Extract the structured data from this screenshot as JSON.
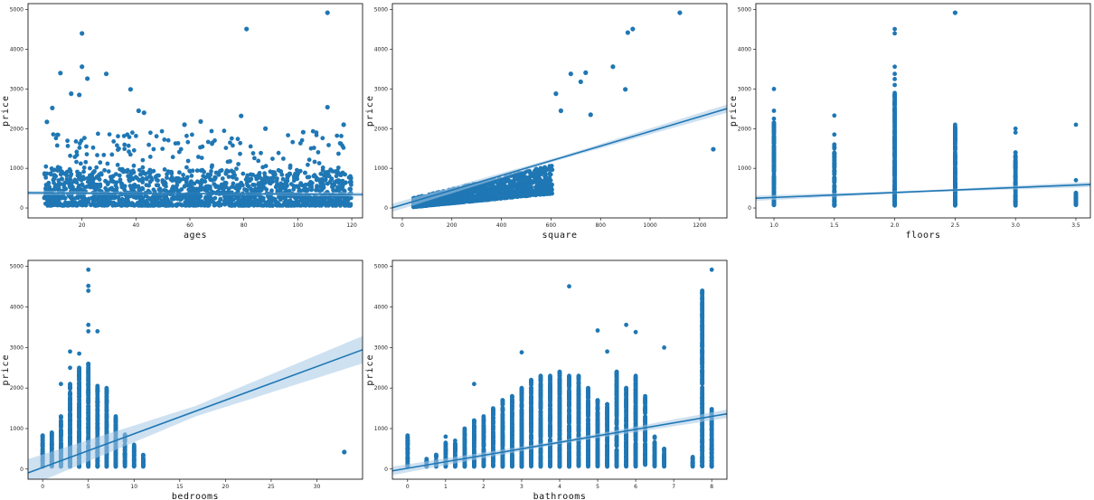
{
  "colors": {
    "points": "#1f77b4",
    "line": "#1f77b4",
    "band": "#a6c8e6",
    "frame": "#000000"
  },
  "chart_data": [
    {
      "type": "scatter",
      "xlabel": "ages",
      "ylabel": "price",
      "xticks": [
        20,
        40,
        60,
        80,
        100,
        120
      ],
      "yticks": [
        0,
        1000,
        2000,
        3000,
        4000,
        5000
      ],
      "xlim": [
        0,
        124
      ],
      "ylim": [
        -250,
        5150
      ],
      "regression": {
        "intercept": 380,
        "slope": -0.3,
        "band": 20
      },
      "outliers": [
        {
          "x": 111,
          "y": 4920
        },
        {
          "x": 81,
          "y": 4510
        },
        {
          "x": 20,
          "y": 4400
        },
        {
          "x": 20,
          "y": 3560
        },
        {
          "x": 12,
          "y": 3400
        },
        {
          "x": 29,
          "y": 3380
        },
        {
          "x": 22,
          "y": 3260
        },
        {
          "x": 38,
          "y": 2990
        },
        {
          "x": 41,
          "y": 2450
        },
        {
          "x": 43,
          "y": 2400
        },
        {
          "x": 16,
          "y": 2880
        },
        {
          "x": 19,
          "y": 2850
        },
        {
          "x": 111,
          "y": 2540
        },
        {
          "x": 9,
          "y": 2520
        },
        {
          "x": 79,
          "y": 2320
        },
        {
          "x": 117,
          "y": 2100
        },
        {
          "x": 7,
          "y": 2170
        },
        {
          "x": 64,
          "y": 2180
        },
        {
          "x": 88,
          "y": 2000
        },
        {
          "x": 102,
          "y": 1910
        },
        {
          "x": 58,
          "y": 2100
        }
      ]
    },
    {
      "type": "scatter",
      "xlabel": "square",
      "ylabel": "price",
      "xticks": [
        0,
        200,
        400,
        600,
        800,
        1000,
        1200
      ],
      "yticks": [
        0,
        1000,
        2000,
        3000,
        4000,
        5000
      ],
      "xlim": [
        -40,
        1310
      ],
      "ylim": [
        -250,
        5150
      ],
      "regression": {
        "intercept": 80,
        "slope": 1.85,
        "band": 40
      },
      "outliers": [
        {
          "x": 1120,
          "y": 4920
        },
        {
          "x": 930,
          "y": 4510
        },
        {
          "x": 910,
          "y": 4420
        },
        {
          "x": 850,
          "y": 3560
        },
        {
          "x": 740,
          "y": 3410
        },
        {
          "x": 680,
          "y": 3380
        },
        {
          "x": 900,
          "y": 2990
        },
        {
          "x": 620,
          "y": 2880
        },
        {
          "x": 1255,
          "y": 1480
        },
        {
          "x": 640,
          "y": 2450
        },
        {
          "x": 720,
          "y": 3180
        },
        {
          "x": 760,
          "y": 2350
        }
      ]
    },
    {
      "type": "scatter",
      "xlabel": "floors",
      "ylabel": "price",
      "xticks": [
        1.0,
        1.5,
        2.0,
        2.5,
        3.0,
        3.5
      ],
      "yticks": [
        0,
        1000,
        2000,
        3000,
        4000,
        5000
      ],
      "xlim": [
        0.85,
        3.62
      ],
      "ylim": [
        -250,
        5150
      ],
      "regression": {
        "intercept": 140,
        "slope": 125,
        "band": 25
      },
      "columns": [
        {
          "x": 1.0,
          "max": 2150,
          "extra": [
            2250,
            2450,
            3000
          ]
        },
        {
          "x": 1.5,
          "max": 1600,
          "extra": [
            1850,
            2330
          ]
        },
        {
          "x": 2.0,
          "max": 2900,
          "extra": [
            3100,
            3250,
            3380,
            3560,
            4400,
            4510
          ]
        },
        {
          "x": 2.5,
          "max": 2050,
          "extra": [
            2100
          ]
        },
        {
          "x": 3.0,
          "max": 1400,
          "extra": [
            1900,
            2000
          ]
        },
        {
          "x": 3.5,
          "max": 380,
          "extra": [
            300,
            700,
            2100
          ]
        }
      ],
      "outliers": [
        {
          "x": 2.5,
          "y": 4920
        }
      ]
    },
    {
      "type": "scatter",
      "xlabel": "bedrooms",
      "ylabel": "price",
      "xticks": [
        0,
        5,
        10,
        15,
        20,
        25,
        30
      ],
      "yticks": [
        0,
        1000,
        2000,
        3000,
        4000,
        5000
      ],
      "xlim": [
        -1.6,
        35
      ],
      "ylim": [
        -250,
        5150
      ],
      "regression": {
        "intercept": 40,
        "slope": 83,
        "band": 130
      },
      "columns": [
        {
          "x": 0,
          "max": 830,
          "extra": []
        },
        {
          "x": 1,
          "max": 900,
          "extra": []
        },
        {
          "x": 2,
          "max": 1300,
          "extra": [
            2100
          ]
        },
        {
          "x": 3,
          "max": 2100,
          "extra": [
            2500,
            2900
          ]
        },
        {
          "x": 4,
          "max": 2500,
          "extra": [
            2850
          ]
        },
        {
          "x": 5,
          "max": 2600,
          "extra": [
            3400,
            3560,
            4400,
            4520,
            4920
          ]
        },
        {
          "x": 6,
          "max": 2050,
          "extra": [
            3400
          ]
        },
        {
          "x": 7,
          "max": 2000,
          "extra": []
        },
        {
          "x": 8,
          "max": 1300,
          "extra": []
        },
        {
          "x": 9,
          "max": 850,
          "extra": []
        },
        {
          "x": 10,
          "max": 600,
          "extra": []
        },
        {
          "x": 11,
          "max": 350,
          "extra": []
        }
      ],
      "outliers": [
        {
          "x": 33,
          "y": 420
        }
      ]
    },
    {
      "type": "scatter",
      "xlabel": "bathrooms",
      "ylabel": "price",
      "xticks": [
        0,
        1,
        2,
        3,
        4,
        5,
        6,
        7,
        8
      ],
      "yticks": [
        0,
        1000,
        2000,
        3000,
        4000,
        5000
      ],
      "xlim": [
        -0.4,
        8.4
      ],
      "ylim": [
        -250,
        5150
      ],
      "regression": {
        "intercept": 20,
        "slope": 160,
        "band": 40
      },
      "columns": [
        {
          "x": 0,
          "max": 830,
          "extra": []
        },
        {
          "x": 0.5,
          "max": 250,
          "extra": []
        },
        {
          "x": 0.75,
          "max": 350,
          "extra": []
        },
        {
          "x": 1,
          "max": 650,
          "extra": [
            800
          ]
        },
        {
          "x": 1.25,
          "max": 700,
          "extra": []
        },
        {
          "x": 1.5,
          "max": 1000,
          "extra": []
        },
        {
          "x": 1.75,
          "max": 1200,
          "extra": [
            2100
          ]
        },
        {
          "x": 2,
          "max": 1300,
          "extra": []
        },
        {
          "x": 2.25,
          "max": 1500,
          "extra": []
        },
        {
          "x": 2.5,
          "max": 1700,
          "extra": []
        },
        {
          "x": 2.75,
          "max": 1800,
          "extra": []
        },
        {
          "x": 3,
          "max": 2000,
          "extra": [
            2880
          ]
        },
        {
          "x": 3.25,
          "max": 2200,
          "extra": []
        },
        {
          "x": 3.5,
          "max": 2300,
          "extra": []
        },
        {
          "x": 3.75,
          "max": 2300,
          "extra": []
        },
        {
          "x": 4,
          "max": 2400,
          "extra": []
        },
        {
          "x": 4.25,
          "max": 2300,
          "extra": [
            4510
          ]
        },
        {
          "x": 4.5,
          "max": 2300,
          "extra": []
        },
        {
          "x": 4.75,
          "max": 2000,
          "extra": []
        },
        {
          "x": 5,
          "max": 1700,
          "extra": [
            3420
          ]
        },
        {
          "x": 5.25,
          "max": 1600,
          "extra": [
            2900
          ]
        },
        {
          "x": 5.5,
          "max": 2400,
          "extra": []
        },
        {
          "x": 5.75,
          "max": 2000,
          "extra": [
            3560
          ]
        },
        {
          "x": 6,
          "max": 2300,
          "extra": [
            3380
          ]
        },
        {
          "x": 6.25,
          "max": 1800,
          "extra": []
        },
        {
          "x": 6.5,
          "max": 800,
          "extra": []
        },
        {
          "x": 6.75,
          "max": 500,
          "extra": [
            3000
          ]
        },
        {
          "x": 7.5,
          "max": 300,
          "extra": []
        },
        {
          "x": 7.75,
          "max": 4400,
          "extra": []
        },
        {
          "x": 8,
          "max": 1480,
          "extra": [
            4920
          ]
        }
      ],
      "outliers": []
    }
  ]
}
